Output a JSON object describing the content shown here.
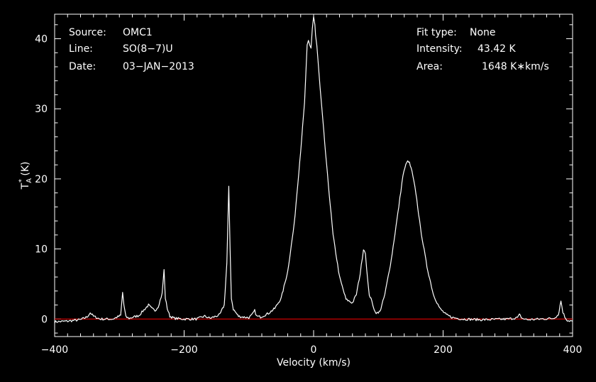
{
  "colors": {
    "background": "#000000",
    "foreground": "#ffffff",
    "baseline": "#e00000"
  },
  "header": {
    "source_label": "Source:",
    "source_value": "OMC1",
    "line_label": "Line:",
    "line_value": "SO(8−7)U",
    "date_label": "Date:",
    "date_value": "03−JAN−2013",
    "fit_label": "Fit type:",
    "fit_value": "None",
    "intensity_label": "Intensity:",
    "intensity_value": "43.42 K",
    "area_label": "Area:",
    "area_value": "1648 K∗km/s"
  },
  "chart_data": {
    "type": "line",
    "xlabel": "Velocity (km/s)",
    "ylabel_main": "T",
    "ylabel_sup": "*",
    "ylabel_sub": "A",
    "ylabel_unit": " (K)",
    "xlim": [
      -400,
      400
    ],
    "ylim": [
      -2.5,
      43.5
    ],
    "xticks": [
      -400,
      -200,
      0,
      200,
      400
    ],
    "yticks": [
      0,
      10,
      20,
      30,
      40
    ],
    "grid": false,
    "baseline": 0,
    "series": [
      {
        "color": "#ffffff",
        "x": [
          -400,
          -380,
          -360,
          -350,
          -345,
          -340,
          -330,
          -310,
          -298,
          -295,
          -293,
          -290,
          -285,
          -270,
          -262,
          -255,
          -250,
          -245,
          -240,
          -234,
          -231,
          -229,
          -226,
          -222,
          -215,
          -200,
          -180,
          -172,
          -168,
          -160,
          -145,
          -138,
          -134,
          -131,
          -129,
          -127,
          -124,
          -120,
          -116,
          -110,
          -100,
          -95,
          -91,
          -88,
          -82,
          -70,
          -60,
          -50,
          -40,
          -30,
          -20,
          -14,
          -12,
          -10,
          -8,
          -6,
          -4,
          -3,
          -2,
          0,
          2,
          3,
          5,
          10,
          20,
          30,
          40,
          50,
          60,
          66,
          72,
          77,
          80,
          82,
          84,
          86,
          90,
          95,
          100,
          104,
          110,
          120,
          130,
          138,
          144,
          148,
          152,
          158,
          165,
          175,
          185,
          195,
          205,
          215,
          230,
          260,
          300,
          315,
          318,
          322,
          330,
          350,
          370,
          378,
          382,
          385,
          388,
          392,
          400
        ],
        "y": [
          -0.4,
          -0.3,
          -0.1,
          0.3,
          0.9,
          0.4,
          0.0,
          0.0,
          0.5,
          3.8,
          2.0,
          0.3,
          0.1,
          0.5,
          1.3,
          2.0,
          1.5,
          1.2,
          1.8,
          3.6,
          7.0,
          3.0,
          1.5,
          0.4,
          0.1,
          0.0,
          0.0,
          0.3,
          0.4,
          0.1,
          0.6,
          2.0,
          8.0,
          18.8,
          10.0,
          3.0,
          1.4,
          0.9,
          0.4,
          0.3,
          0.2,
          0.6,
          1.2,
          0.4,
          0.3,
          0.8,
          1.5,
          3.0,
          6.8,
          13.5,
          24.0,
          30.8,
          35.0,
          39.0,
          39.6,
          39.0,
          38.6,
          40.0,
          41.5,
          43.2,
          42.0,
          40.5,
          39.0,
          33.0,
          22.0,
          12.0,
          6.0,
          2.8,
          2.3,
          3.5,
          6.5,
          10.0,
          9.5,
          7.0,
          5.0,
          3.5,
          2.5,
          1.0,
          0.8,
          1.5,
          3.5,
          8.5,
          15.0,
          20.5,
          22.5,
          22.3,
          21.0,
          18.0,
          13.0,
          7.5,
          3.5,
          1.5,
          0.6,
          0.2,
          0.0,
          -0.1,
          0.0,
          0.2,
          0.6,
          0.1,
          -0.1,
          0.0,
          0.1,
          0.6,
          2.6,
          1.0,
          0.3,
          -0.2,
          -0.3
        ]
      }
    ]
  }
}
